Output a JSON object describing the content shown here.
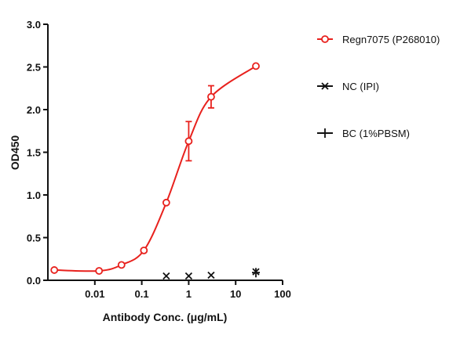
{
  "chart_data": {
    "type": "scatter",
    "x_label": "Antibody Conc. (μg/mL)",
    "y_label": "OD450",
    "x_log": true,
    "xlim": [
      0.001,
      100
    ],
    "xticks": [
      0.01,
      0.1,
      1,
      10,
      100
    ],
    "ylim": [
      0,
      3
    ],
    "yticks": [
      {
        "value": 0,
        "label": "0.0"
      },
      0.5,
      {
        "value": 1,
        "label": "1.0"
      },
      1.5,
      {
        "value": 2,
        "label": "2.0"
      },
      2.5,
      {
        "value": 3,
        "label": "3.0"
      }
    ],
    "series": [
      {
        "name": "Regn7075 (P268010)",
        "color": "#e8211d",
        "marker": "circle",
        "curve": true,
        "x": [
          0.00137,
          0.0123,
          0.037,
          0.111,
          0.333,
          1,
          3,
          27
        ],
        "values": [
          0.12,
          0.11,
          0.18,
          0.35,
          0.91,
          1.63,
          2.15,
          2.51
        ],
        "errors": [
          0,
          0,
          0,
          0,
          0,
          0.23,
          0.13,
          0
        ]
      },
      {
        "name": "NC (IPI)",
        "color": "#111111",
        "marker": "x",
        "x": [
          0.333,
          1,
          3,
          27
        ],
        "values": [
          0.05,
          0.05,
          0.06,
          0.1
        ]
      },
      {
        "name": "BC (1%PBSM)",
        "color": "#111111",
        "marker": "plus",
        "x": [
          27
        ],
        "values": [
          0.09
        ]
      }
    ]
  }
}
